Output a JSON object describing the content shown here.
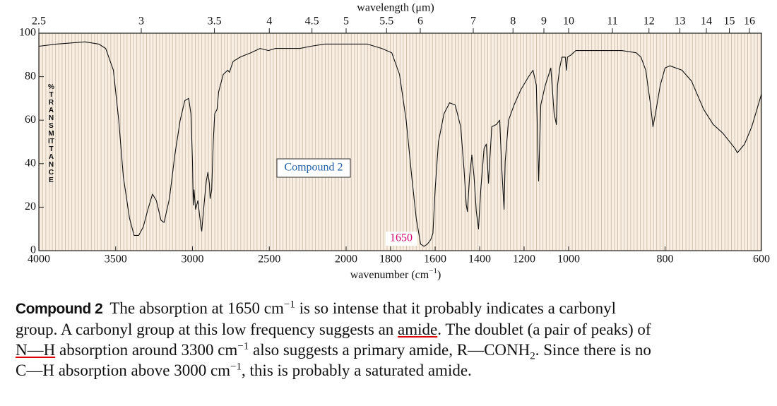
{
  "chart_data": {
    "type": "line",
    "x2label": "wavelength (μm)",
    "xlabel": [
      "wavenumber (cm",
      "−1",
      ")"
    ],
    "ylabel": "%TRANSMITTANCE",
    "annotations": [
      "Compound 2",
      "1650"
    ],
    "color": "#111111",
    "xlim": [
      4000,
      600
    ],
    "xticks": [
      4000,
      3500,
      3000,
      2500,
      2000,
      1800,
      1600,
      1400,
      1200,
      1000,
      800,
      600
    ],
    "x2ticks": [
      2.5,
      3,
      3.5,
      4,
      4.5,
      5,
      5.5,
      6,
      7,
      8,
      9,
      10,
      11,
      12,
      13,
      14,
      15,
      16
    ],
    "ylim": [
      0,
      100
    ],
    "yticks": [
      0,
      20,
      40,
      60,
      80,
      100
    ],
    "x": [
      4000,
      3885,
      3700,
      3610,
      3565,
      3515,
      3480,
      3450,
      3410,
      3380,
      3350,
      3320,
      3290,
      3260,
      3235,
      3205,
      3185,
      3150,
      3115,
      3080,
      3050,
      3025,
      3010,
      3000,
      2995,
      2990,
      2980,
      2965,
      2945,
      2940,
      2925,
      2910,
      2900,
      2890,
      2885,
      2875,
      2865,
      2855,
      2840,
      2830,
      2800,
      2770,
      2760,
      2735,
      2690,
      2620,
      2560,
      2505,
      2460,
      2415,
      2370,
      2300,
      2230,
      2140,
      2045,
      1970,
      1905,
      1840,
      1795,
      1760,
      1730,
      1705,
      1685,
      1665,
      1650,
      1635,
      1620,
      1610,
      1600,
      1585,
      1560,
      1535,
      1510,
      1485,
      1470,
      1460,
      1455,
      1445,
      1435,
      1425,
      1415,
      1405,
      1395,
      1380,
      1370,
      1360,
      1355,
      1345,
      1325,
      1310,
      1300,
      1290,
      1285,
      1270,
      1245,
      1215,
      1180,
      1160,
      1145,
      1135,
      1125,
      1105,
      1080,
      1065,
      1055,
      1050,
      1040,
      1030,
      1015,
      1010,
      1005,
      995,
      985,
      965,
      920,
      890,
      860,
      850,
      840,
      830,
      825,
      820,
      810,
      800,
      790,
      765,
      745,
      720,
      700,
      680,
      655,
      650,
      635,
      620,
      600
    ],
    "values": [
      94,
      95,
      96,
      95,
      93,
      83,
      60,
      34,
      15,
      7,
      7,
      11,
      19,
      26,
      23,
      14,
      13,
      24,
      44,
      60,
      69,
      70,
      63,
      41,
      21,
      28,
      19,
      23,
      11,
      9,
      21,
      32,
      36,
      31,
      24,
      28,
      50,
      63,
      65,
      73,
      81,
      83,
      82,
      87,
      89,
      91,
      93,
      92,
      93,
      93,
      93,
      93,
      94,
      95,
      95,
      95,
      95,
      93,
      91,
      81,
      60,
      34,
      15,
      3,
      2,
      3,
      5,
      8,
      28,
      50,
      63,
      68,
      67,
      57,
      37,
      21,
      18,
      34,
      44,
      34,
      18,
      10,
      28,
      47,
      49,
      31,
      41,
      57,
      58,
      60,
      37,
      19,
      41,
      60,
      67,
      74,
      80,
      83,
      76,
      32,
      67,
      76,
      84,
      63,
      58,
      76,
      84,
      89,
      89,
      83,
      89,
      90,
      92,
      92,
      92,
      92,
      91,
      89,
      83,
      67,
      57,
      63,
      76,
      84,
      85,
      83,
      78,
      65,
      58,
      54,
      47,
      45,
      49,
      57,
      72
    ]
  },
  "caption": {
    "label": "Compound 2",
    "parts": [
      {
        "text": "The absorption at 1650 cm",
        "style": "plain"
      },
      {
        "text": "−1",
        "style": "sup"
      },
      {
        "text": " is so intense that it probably indicates a carbonyl group. A carbonyl group at this low frequency suggests an ",
        "style": "plain"
      },
      {
        "text": "amide",
        "style": "underline"
      },
      {
        "text": ". The doublet (a pair of peaks) of ",
        "style": "plain"
      },
      {
        "text": "N—H",
        "style": "underline"
      },
      {
        "text": " absorption around 3300 cm",
        "style": "plain"
      },
      {
        "text": "−1",
        "style": "sup"
      },
      {
        "text": " also suggests a primary amide, R—CONH",
        "style": "plain"
      },
      {
        "text": "2",
        "style": "sub"
      },
      {
        "text": ". Since there is no C—H absorption above 3000 cm",
        "style": "plain"
      },
      {
        "text": "−1",
        "style": "sup"
      },
      {
        "text": ", this is probably a saturated amide.",
        "style": "plain"
      }
    ]
  }
}
